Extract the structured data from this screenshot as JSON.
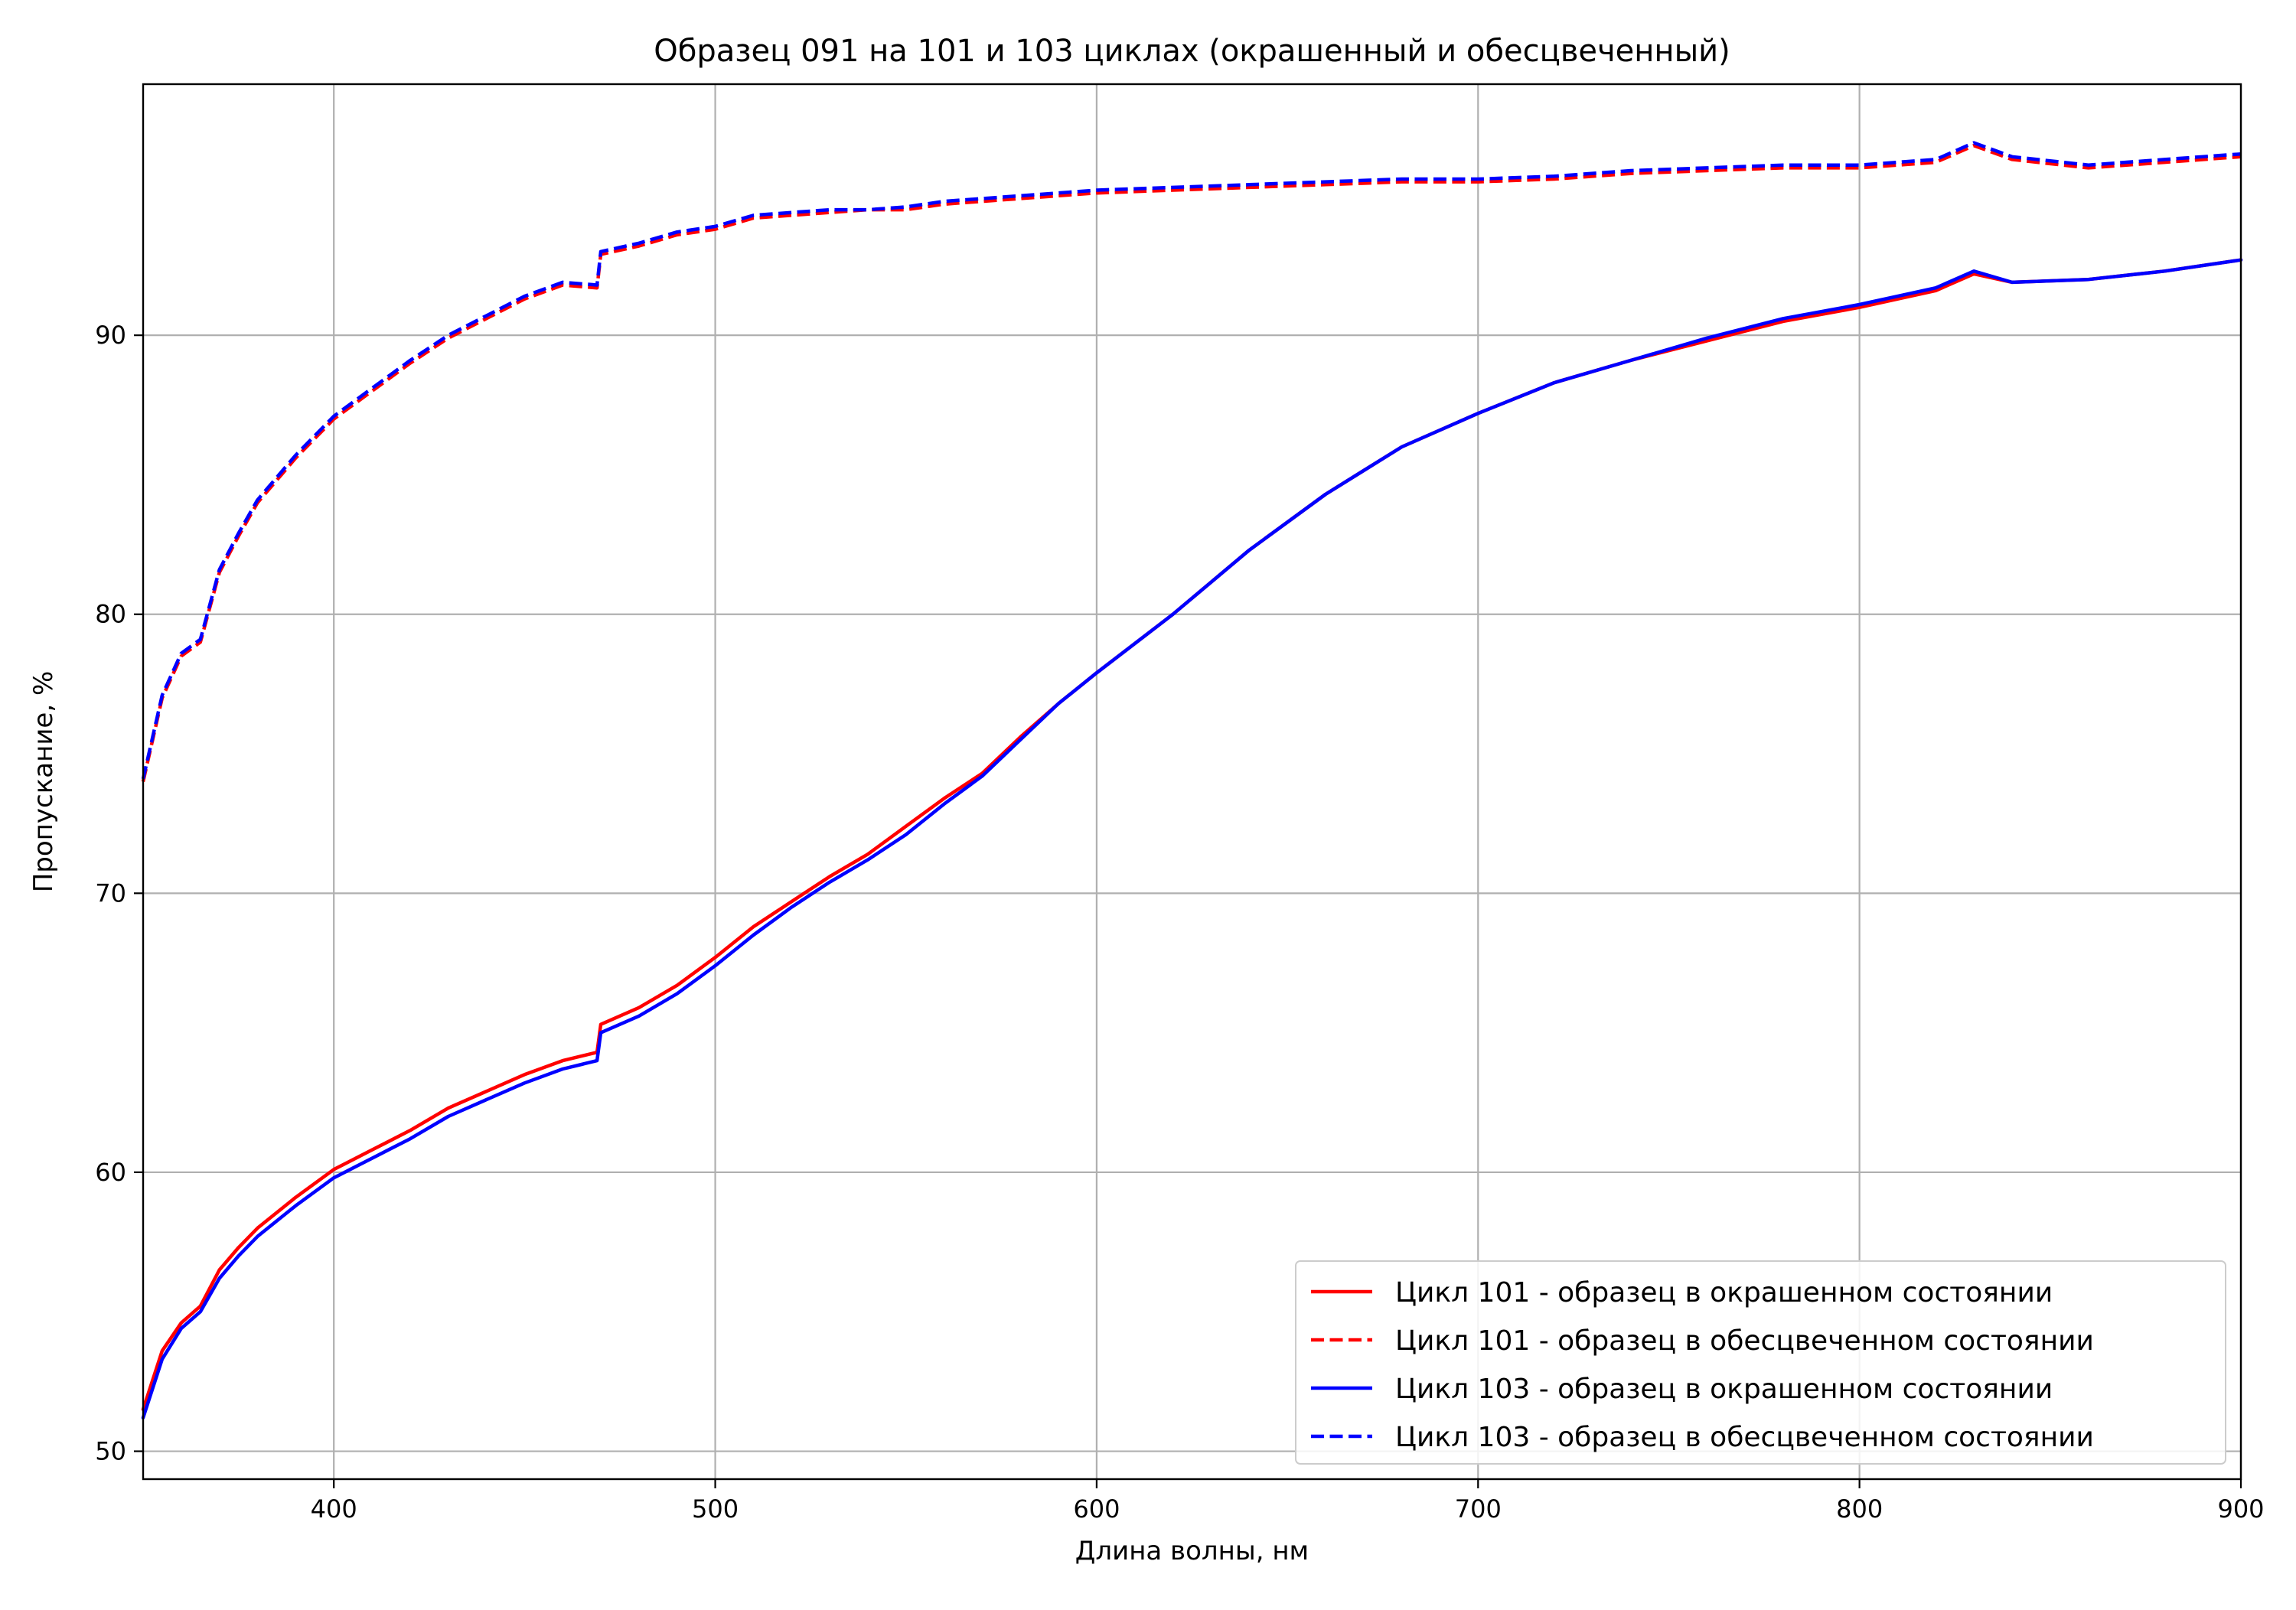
{
  "chart_data": {
    "type": "line",
    "title": "Образец 091 на 101 и 103 циклах (окрашенный и обесцвеченный)",
    "xlabel": "Длина волны, нм",
    "ylabel": "Пропускание, %",
    "xlim": [
      350,
      900
    ],
    "ylim": [
      49,
      99
    ],
    "xticks": [
      400,
      500,
      600,
      700,
      800,
      900
    ],
    "yticks": [
      50,
      60,
      70,
      80,
      90
    ],
    "grid": true,
    "legend_position": "lower-right",
    "colors": {
      "red": "#ff0000",
      "blue": "#0000ff"
    },
    "x": [
      350,
      355,
      360,
      365,
      370,
      375,
      380,
      390,
      400,
      410,
      420,
      430,
      440,
      450,
      460,
      469,
      470,
      480,
      490,
      500,
      510,
      520,
      530,
      540,
      550,
      560,
      570,
      580,
      590,
      600,
      620,
      640,
      660,
      680,
      700,
      720,
      740,
      760,
      780,
      800,
      820,
      830,
      840,
      860,
      880,
      900
    ],
    "series": [
      {
        "name": "Цикл 101 - образец в окрашенном состоянии",
        "color": "#ff0000",
        "style": "solid",
        "values": [
          51.5,
          53.6,
          54.6,
          55.2,
          56.5,
          57.3,
          58.0,
          59.1,
          60.1,
          60.8,
          61.5,
          62.3,
          62.9,
          63.5,
          64.0,
          64.3,
          65.3,
          65.9,
          66.7,
          67.7,
          68.8,
          69.7,
          70.6,
          71.4,
          72.4,
          73.4,
          74.3,
          75.6,
          76.8,
          77.9,
          80.0,
          82.3,
          84.3,
          86.0,
          87.2,
          88.3,
          89.1,
          89.8,
          90.5,
          91.0,
          91.6,
          92.2,
          91.9,
          92.0,
          92.3,
          92.7
        ]
      },
      {
        "name": "Цикл 101 - образец в обесцвеченном состоянии",
        "color": "#ff0000",
        "style": "dashed",
        "values": [
          74.0,
          77.0,
          78.5,
          79.0,
          81.5,
          82.8,
          84.0,
          85.6,
          87.0,
          88.0,
          89.0,
          89.9,
          90.6,
          91.3,
          91.8,
          91.7,
          92.9,
          93.2,
          93.6,
          93.8,
          94.2,
          94.3,
          94.4,
          94.5,
          94.5,
          94.7,
          94.8,
          94.9,
          95.0,
          95.1,
          95.2,
          95.3,
          95.4,
          95.5,
          95.5,
          95.6,
          95.8,
          95.9,
          96.0,
          96.0,
          96.2,
          96.8,
          96.3,
          96.0,
          96.2,
          96.4
        ]
      },
      {
        "name": "Цикл 103 - образец в окрашенном состоянии",
        "color": "#0000ff",
        "style": "solid",
        "values": [
          51.2,
          53.3,
          54.4,
          55.0,
          56.2,
          57.0,
          57.7,
          58.8,
          59.8,
          60.5,
          61.2,
          62.0,
          62.6,
          63.2,
          63.7,
          64.0,
          65.0,
          65.6,
          66.4,
          67.4,
          68.5,
          69.5,
          70.4,
          71.2,
          72.1,
          73.2,
          74.2,
          75.5,
          76.8,
          77.9,
          80.0,
          82.3,
          84.3,
          86.0,
          87.2,
          88.3,
          89.1,
          89.9,
          90.6,
          91.1,
          91.7,
          92.3,
          91.9,
          92.0,
          92.3,
          92.7
        ]
      },
      {
        "name": "Цикл 103 - образец в обесцвеченном состоянии",
        "color": "#0000ff",
        "style": "dashed",
        "values": [
          74.1,
          77.1,
          78.6,
          79.1,
          81.6,
          82.9,
          84.1,
          85.7,
          87.1,
          88.1,
          89.1,
          90.0,
          90.7,
          91.4,
          91.9,
          91.8,
          93.0,
          93.3,
          93.7,
          93.9,
          94.3,
          94.4,
          94.5,
          94.5,
          94.6,
          94.8,
          94.9,
          95.0,
          95.1,
          95.2,
          95.3,
          95.4,
          95.5,
          95.6,
          95.6,
          95.7,
          95.9,
          96.0,
          96.1,
          96.1,
          96.3,
          96.9,
          96.4,
          96.1,
          96.3,
          96.5
        ]
      }
    ]
  }
}
